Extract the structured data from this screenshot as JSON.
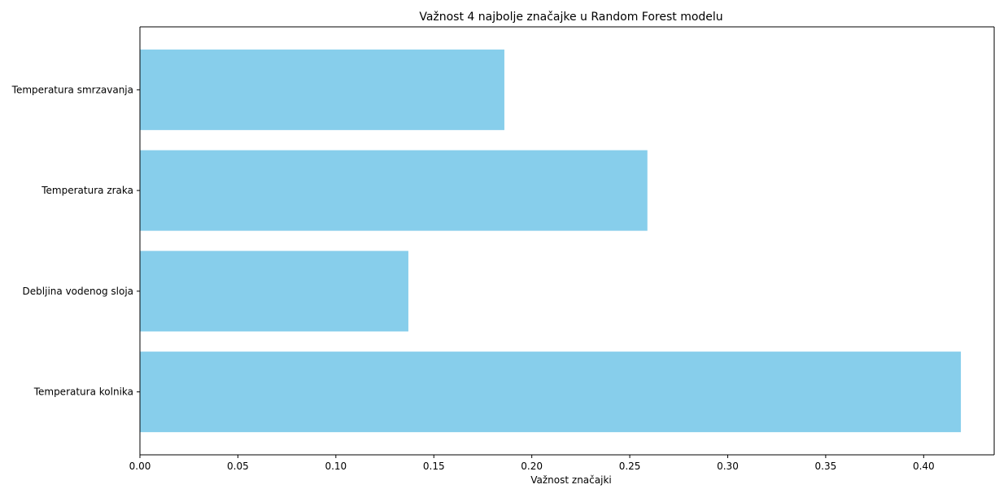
{
  "chart_data": {
    "type": "bar",
    "orientation": "horizontal",
    "title": "Važnost 4 najbolje značajke u Random Forest modelu",
    "xlabel": "Važnost značajki",
    "ylabel": "",
    "categories": [
      "Temperatura smrzavanja",
      "Temperatura zraka",
      "Debljina vodenog sloja",
      "Temperatura kolnika"
    ],
    "values": [
      0.186,
      0.259,
      0.137,
      0.419
    ],
    "xlim": [
      0.0,
      0.436
    ],
    "xticks": [
      0.0,
      0.05,
      0.1,
      0.15,
      0.2,
      0.25,
      0.3,
      0.35,
      0.4
    ],
    "xtick_labels": [
      "0.00",
      "0.05",
      "0.10",
      "0.15",
      "0.20",
      "0.25",
      "0.30",
      "0.35",
      "0.40"
    ],
    "grid": false,
    "legend": "none",
    "bar_color": "#87ceeb"
  }
}
